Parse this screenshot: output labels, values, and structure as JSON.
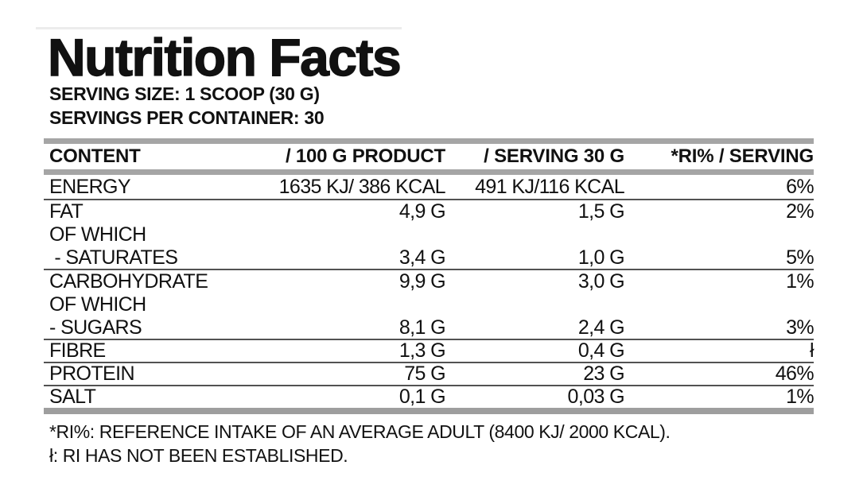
{
  "colors": {
    "text": "#111111",
    "bar_gray": "#a5a5a5",
    "separator_gray": "#525252",
    "streak_gray": "#ececec"
  },
  "header": {
    "title": "Nutrition Facts",
    "serving_size": "SERVING SIZE: 1 SCOOP (30 G)",
    "servings_per_container": "SERVINGS PER CONTAINER: 30"
  },
  "table": {
    "columns": [
      "CONTENT",
      "/ 100 G PRODUCT",
      "/ SERVING 30 G",
      "*RI% / SERVING"
    ],
    "rows": [
      {
        "content": "ENERGY",
        "per_100g": "1635 KJ/ 386 KCAL",
        "per_serving_30g": "491 KJ/116 KCAL",
        "ri_per_serving": "6%"
      },
      {
        "content": "FAT",
        "per_100g": "4,9 G",
        "per_serving_30g": "1,5 G",
        "ri_per_serving": "2%"
      },
      {
        "content": "OF WHICH",
        "per_100g": "",
        "per_serving_30g": "",
        "ri_per_serving": ""
      },
      {
        "content": " - SATURATES",
        "per_100g": "3,4 G",
        "per_serving_30g": "1,0 G",
        "ri_per_serving": "5%"
      },
      {
        "content": "CARBOHYDRATE",
        "per_100g": "9,9 G",
        "per_serving_30g": "3,0 G",
        "ri_per_serving": "1%"
      },
      {
        "content": "OF WHICH",
        "per_100g": "",
        "per_serving_30g": "",
        "ri_per_serving": ""
      },
      {
        "content": "- SUGARS",
        "per_100g": "8,1 G",
        "per_serving_30g": "2,4 G",
        "ri_per_serving": "3%"
      },
      {
        "content": "FIBRE",
        "per_100g": "1,3 G",
        "per_serving_30g": "0,4 G",
        "ri_per_serving": "ł"
      },
      {
        "content": "PROTEIN",
        "per_100g": "75 G",
        "per_serving_30g": "23 G",
        "ri_per_serving": "46%"
      },
      {
        "content": "SALT",
        "per_100g": "0,1 G",
        "per_serving_30g": "0,03 G",
        "ri_per_serving": "1%"
      }
    ]
  },
  "footnotes": [
    "*RI%: REFERENCE INTAKE OF AN AVERAGE ADULT (8400 KJ/ 2000 KCAL).",
    "ł: RI HAS NOT BEEN ESTABLISHED."
  ]
}
